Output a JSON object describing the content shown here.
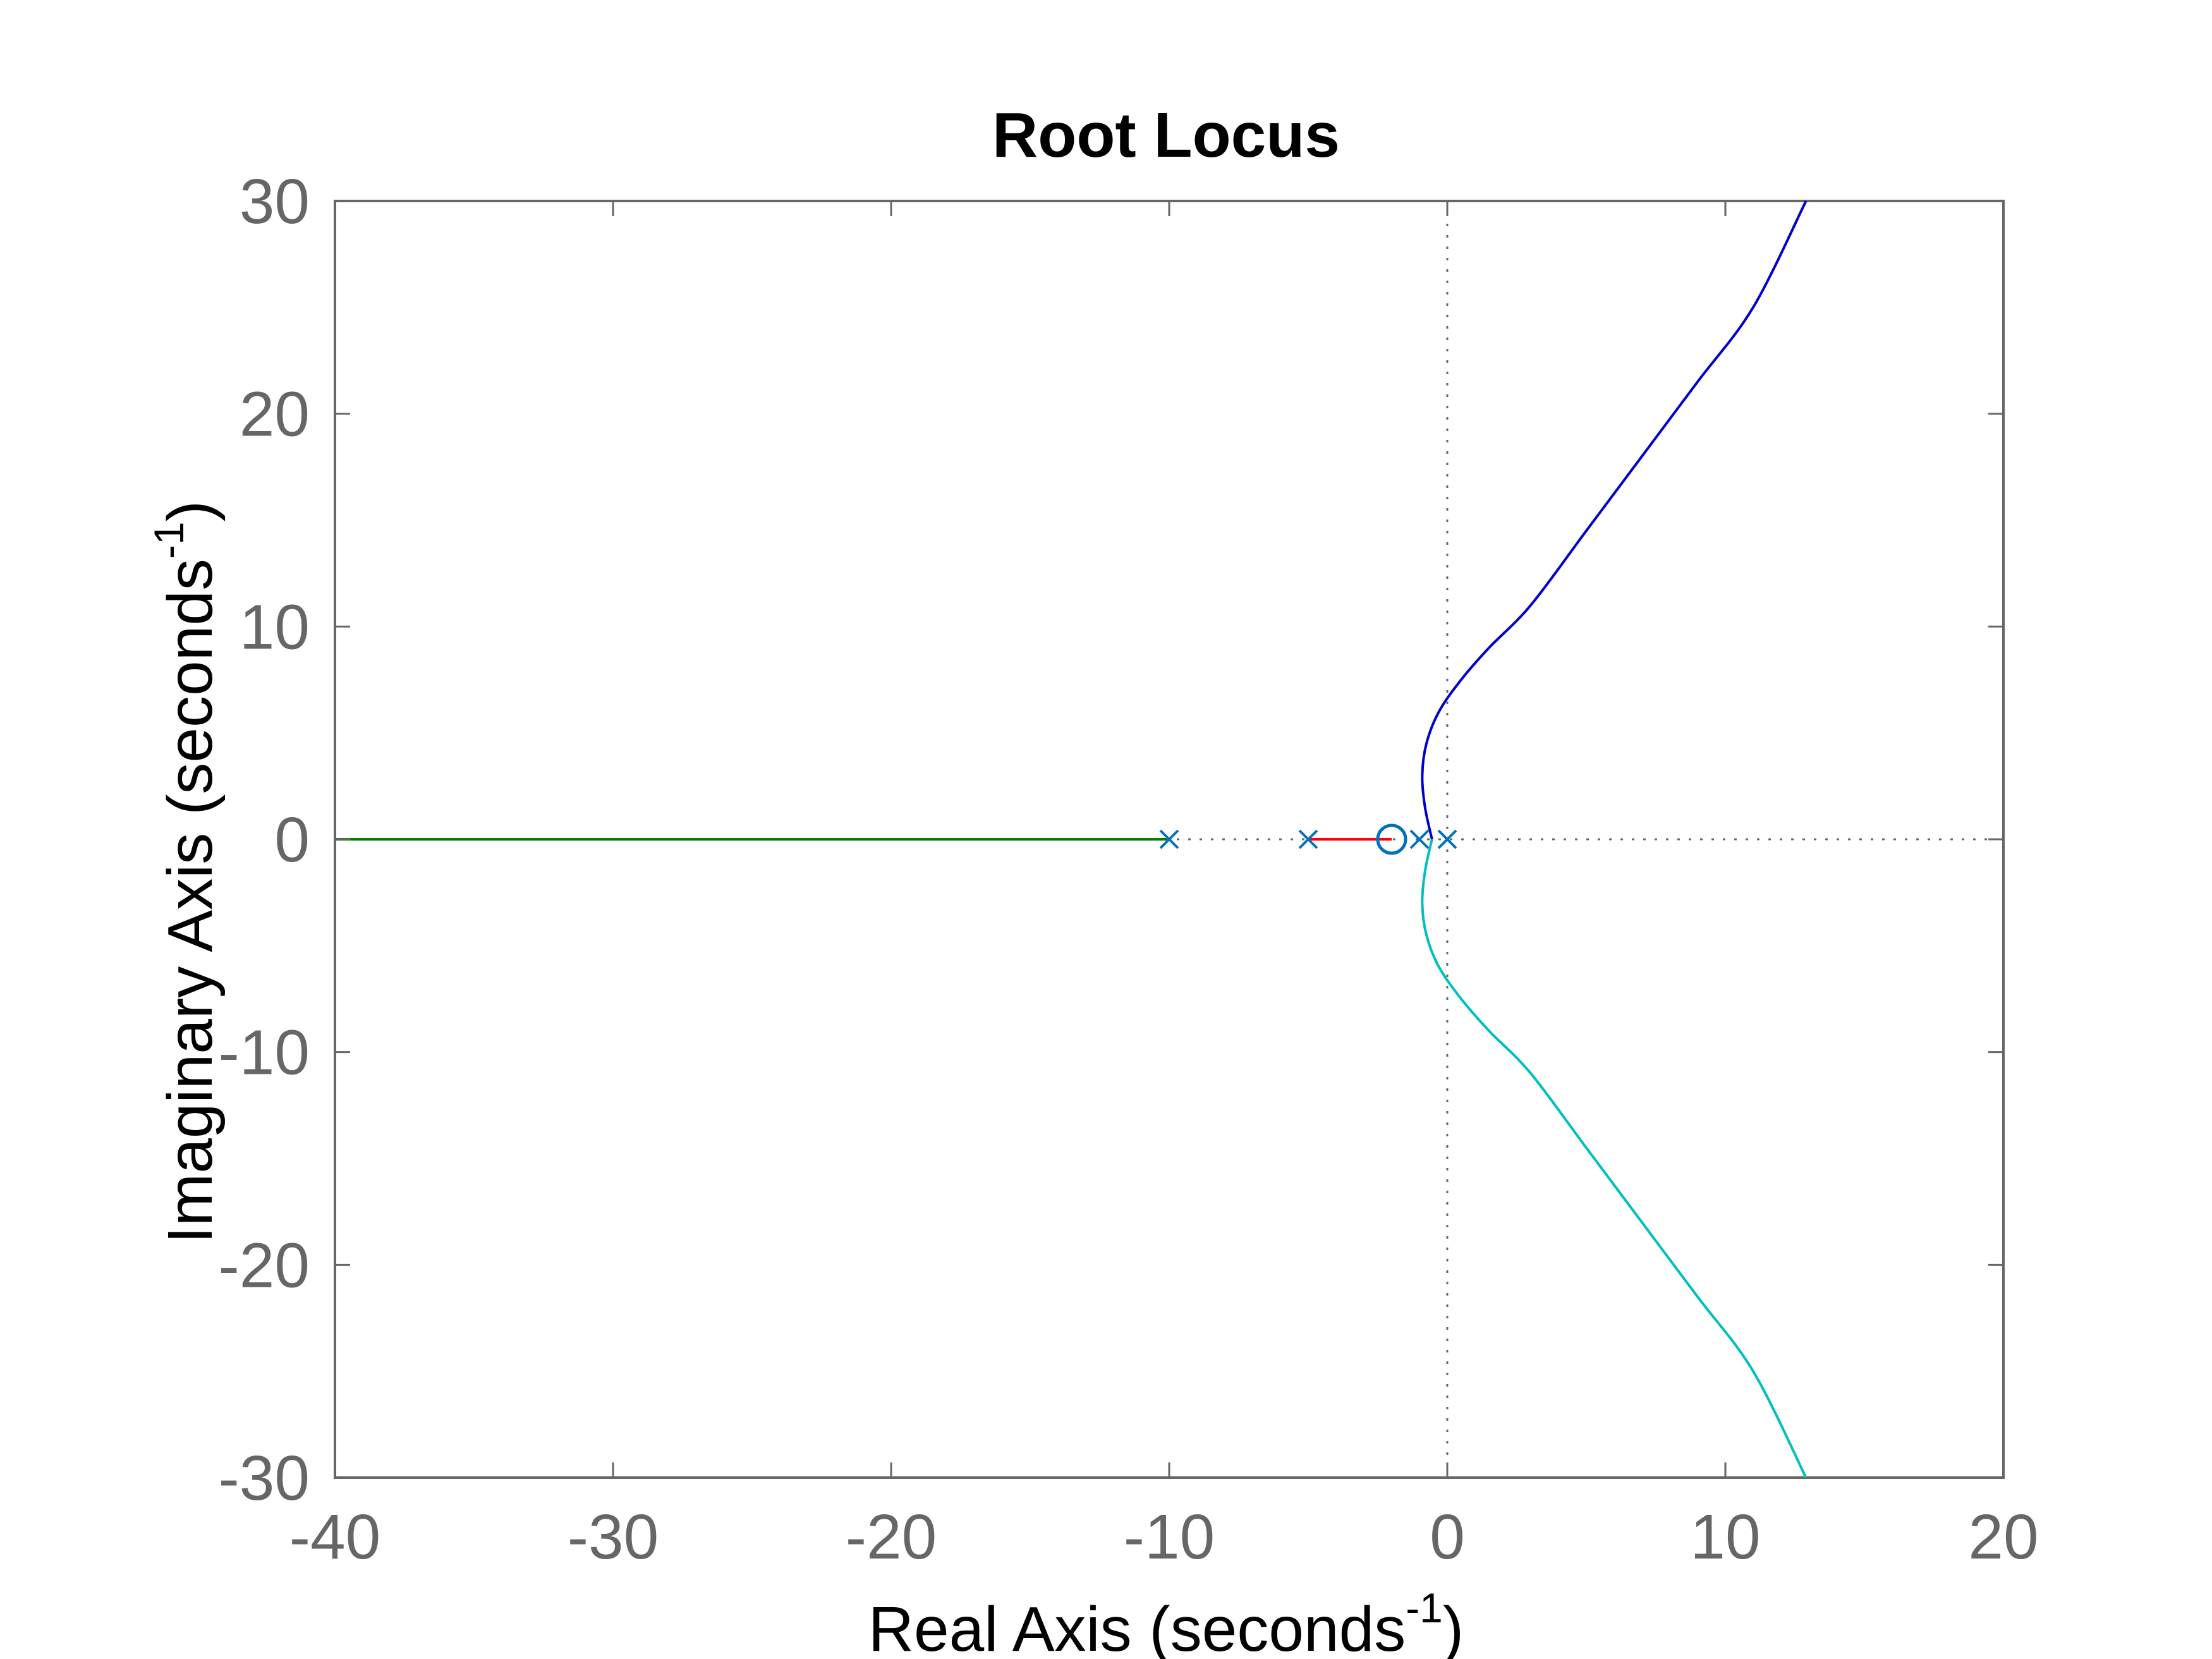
{
  "chart_data": {
    "type": "line",
    "title": "Root Locus",
    "xlabel": "Real Axis (seconds",
    "xlabel_superscript": "-1",
    "xlabel_close": ")",
    "ylabel": "Imaginary Axis (seconds",
    "ylabel_superscript": "-1",
    "ylabel_close": ")",
    "xlim": [
      -40,
      20
    ],
    "ylim": [
      -30,
      30
    ],
    "xticks": [
      -40,
      -30,
      -20,
      -10,
      0,
      10,
      20
    ],
    "yticks": [
      -30,
      -20,
      -10,
      0,
      10,
      20,
      30
    ],
    "xtick_labels": [
      "-40",
      "-30",
      "-20",
      "-10",
      "0",
      "10",
      "20"
    ],
    "ytick_labels": [
      "-30",
      "-20",
      "-10",
      "0",
      "10",
      "20",
      "30"
    ],
    "grid": false,
    "reference_lines": [
      {
        "orientation": "horizontal",
        "value": 0,
        "style": "dotted",
        "color": "#666666"
      },
      {
        "orientation": "vertical",
        "value": 0,
        "style": "dotted",
        "color": "#666666"
      }
    ],
    "poles": [
      {
        "x": 0,
        "y": 0
      },
      {
        "x": -1,
        "y": 0
      },
      {
        "x": -5,
        "y": 0
      },
      {
        "x": -10,
        "y": 0
      }
    ],
    "zeros": [
      {
        "x": -2,
        "y": 0
      }
    ],
    "marker_color": "#0072BD",
    "series": [
      {
        "color": "#0000CC",
        "x": [
          -0.55,
          -0.8,
          -0.9,
          -0.75,
          -0.3,
          0.5,
          1.5,
          3,
          5,
          7,
          9,
          11,
          12.9
        ],
        "y": [
          0,
          1.5,
          3,
          4.5,
          6,
          7.5,
          9,
          11,
          14.5,
          18,
          21.5,
          25,
          30
        ]
      },
      {
        "color": "#00BFBF",
        "x": [
          -0.55,
          -0.8,
          -0.9,
          -0.75,
          -0.3,
          0.5,
          1.5,
          3,
          5,
          7,
          9,
          11,
          12.9
        ],
        "y": [
          0,
          -1.5,
          -3,
          -4.5,
          -6,
          -7.5,
          -9,
          -11,
          -14.5,
          -18,
          -21.5,
          -25,
          -30
        ]
      },
      {
        "color": "#FF0000",
        "x": [
          -5,
          -2
        ],
        "y": [
          0,
          0
        ]
      },
      {
        "color": "#008000",
        "x": [
          -10,
          -40
        ],
        "y": [
          0,
          0
        ]
      }
    ]
  }
}
